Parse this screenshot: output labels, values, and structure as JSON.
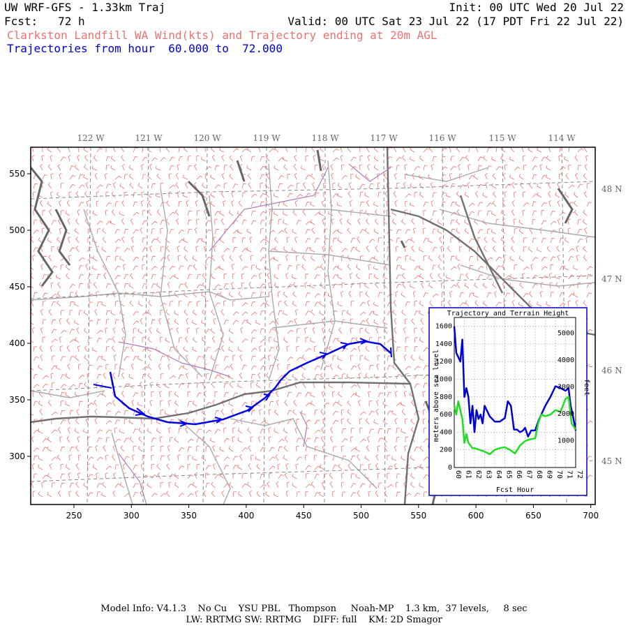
{
  "header": {
    "model_title": "UW WRF-GFS - 1.33km Traj",
    "init": "Init: 00 UTC Wed 20 Jul 22",
    "fcst": "Fcst:   72 h",
    "valid": "Valid: 00 UTC Sat 23 Jul 22 (17 PDT Fri 22 Jul 22)",
    "product": "Clarkston Landfill WA Wind(kts) and Trajectory ending at 20m AGL",
    "traj_range": "Trajectories from hour  60.000 to  72.000"
  },
  "map": {
    "lon_labels": [
      "122 W",
      "121 W",
      "120 W",
      "119 W",
      "118 W",
      "117 W",
      "116 W",
      "115 W",
      "114 W"
    ],
    "lat_labels": [
      "48 N",
      "47 N",
      "46 N",
      "45 N"
    ],
    "x_ticks": [
      "250",
      "300",
      "350",
      "400",
      "450",
      "500",
      "550",
      "600",
      "650",
      "700"
    ],
    "y_ticks": [
      "550",
      "500",
      "450",
      "400",
      "350",
      "300"
    ],
    "trajectory_color": "#0000d0",
    "wind_barb_color": "#f07070"
  },
  "inset": {
    "title": "Trajectory and Terrain Height",
    "y_left_label": "meters above sea level",
    "y_right_label": "feet",
    "x_label": "Fcst Hour",
    "y_left_ticks": [
      "1600",
      "1400",
      "1200",
      "1000",
      "800",
      "600",
      "400",
      "200",
      "0"
    ],
    "y_right_ticks": [
      "5000",
      "4000",
      "3000",
      "2000",
      "1000"
    ],
    "x_ticks": [
      "60",
      "61",
      "62",
      "63",
      "64",
      "65",
      "66",
      "67",
      "68",
      "69",
      "70",
      "71",
      "72"
    ],
    "chart_data": {
      "type": "line",
      "xlabel": "Fcst Hour",
      "ylabel": "meters above sea level",
      "xlim": [
        60,
        72
      ],
      "ylim": [
        0,
        1700
      ],
      "series": [
        {
          "color": "#0000d0",
          "x": [
            60.0,
            60.2,
            60.4,
            60.6,
            60.8,
            61.0,
            61.2,
            61.4,
            61.6,
            61.8,
            62.0,
            62.2,
            62.4,
            62.6,
            62.8,
            63.0,
            63.5,
            64.0,
            64.5,
            65.0,
            65.3,
            65.6,
            65.9,
            66.2,
            66.5,
            66.8,
            67.0,
            67.3,
            67.6,
            68.0,
            68.3,
            68.6,
            69.0,
            69.5,
            70.0,
            70.5,
            71.0,
            71.3,
            71.5,
            71.7,
            72.0
          ],
          "values": [
            1600,
            1300,
            1250,
            1200,
            1450,
            800,
            900,
            800,
            500,
            700,
            400,
            650,
            550,
            600,
            500,
            700,
            580,
            520,
            520,
            560,
            750,
            700,
            430,
            430,
            400,
            420,
            450,
            350,
            420,
            420,
            520,
            600,
            700,
            800,
            920,
            900,
            870,
            900,
            700,
            600,
            420
          ]
        },
        {
          "color": "#22dd22",
          "x": [
            60.0,
            60.2,
            60.4,
            60.6,
            60.8,
            61.0,
            61.2,
            61.4,
            61.6,
            61.8,
            62.0,
            62.5,
            63.0,
            63.5,
            64.0,
            64.5,
            65.0,
            65.5,
            66.0,
            66.5,
            67.0,
            67.5,
            68.0,
            68.3,
            68.6,
            69.0,
            69.5,
            70.0,
            70.5,
            71.0,
            71.3,
            71.6,
            72.0
          ],
          "values": [
            700,
            600,
            750,
            650,
            550,
            280,
            380,
            280,
            250,
            220,
            220,
            200,
            180,
            150,
            200,
            220,
            230,
            200,
            160,
            250,
            300,
            320,
            330,
            500,
            600,
            580,
            600,
            650,
            630,
            780,
            800,
            500,
            430
          ]
        }
      ]
    }
  },
  "footer": {
    "line1": "Model Info: V4.1.3    No Cu    YSU PBL   Thompson     Noah-MP    1.3 km,  37 levels,     8 sec",
    "line2": "LW: RRTMG SW: RRTMG    DIFF: full    KM: 2D Smagor"
  }
}
